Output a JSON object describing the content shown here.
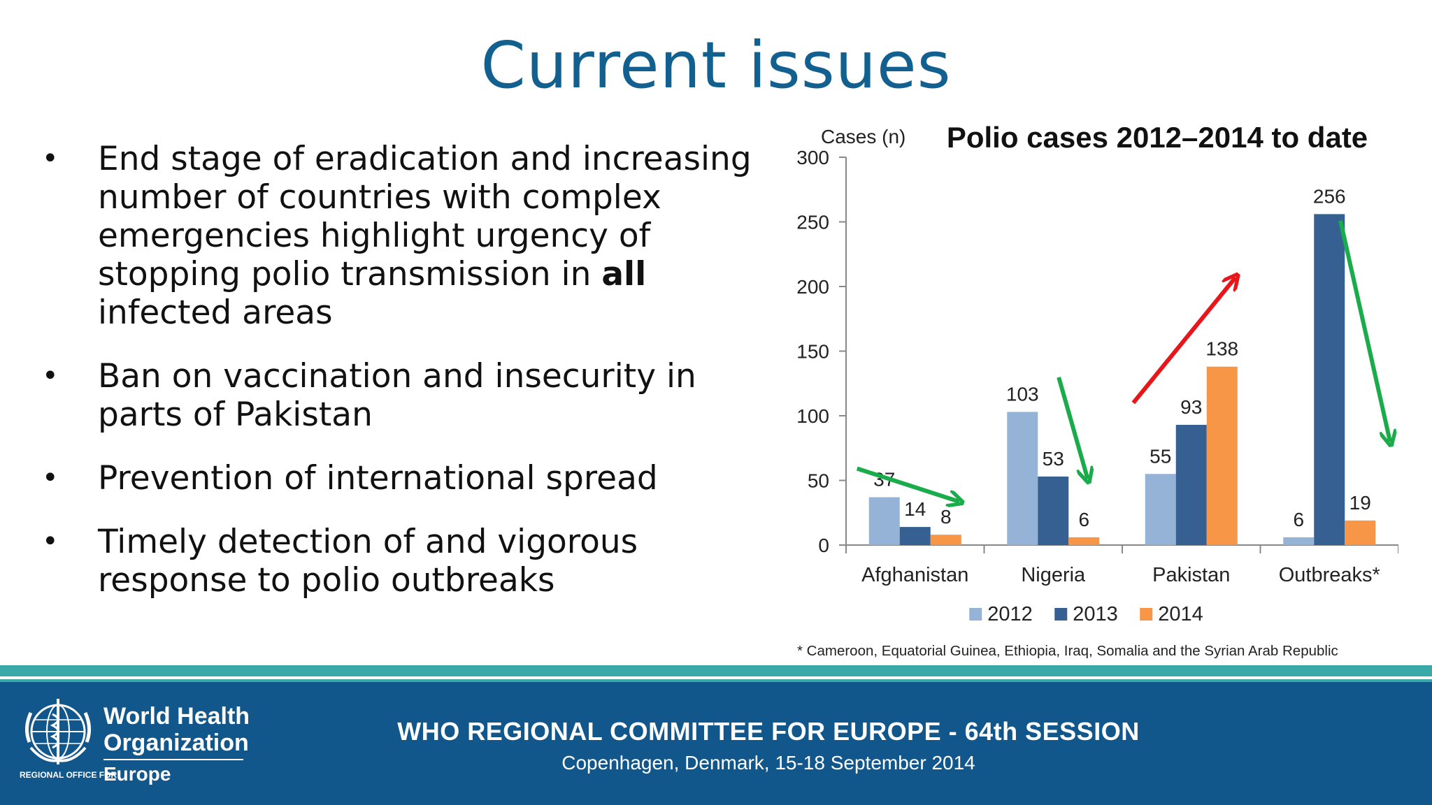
{
  "slide": {
    "title": "Current issues"
  },
  "bullets": [
    "End stage of eradication and increasing number of countries with complex emergencies highlight urgency of stopping polio transmission in all infected areas",
    "Ban on vaccination and insecurity in parts of Pakistan",
    "Prevention of international spread",
    "Timely detection of and vigorous response to polio outbreaks"
  ],
  "bullet_marker": "•",
  "bullet_bold_word": "all",
  "chart_data": {
    "type": "bar",
    "title": "Polio cases 2012–2014 to date",
    "ylabel": "Cases (n)",
    "xlabel": "",
    "ylim": [
      0,
      300
    ],
    "yticks": [
      0,
      50,
      100,
      150,
      200,
      250,
      300
    ],
    "categories": [
      "Afghanistan",
      "Nigeria",
      "Pakistan",
      "Outbreaks*"
    ],
    "series": [
      {
        "name": "2012",
        "color": "#95b3d7",
        "values": [
          37,
          103,
          55,
          6
        ]
      },
      {
        "name": "2013",
        "color": "#376092",
        "values": [
          14,
          53,
          93,
          256
        ]
      },
      {
        "name": "2014",
        "color": "#f79646",
        "values": [
          8,
          6,
          138,
          19
        ]
      }
    ],
    "legend_position": "bottom",
    "grid": false,
    "trend_arrows": [
      {
        "category": "Afghanistan",
        "direction": "down",
        "color": "#1aab4b"
      },
      {
        "category": "Nigeria",
        "direction": "down",
        "color": "#1aab4b"
      },
      {
        "category": "Pakistan",
        "direction": "up",
        "color": "#e8151a"
      },
      {
        "category": "Outbreaks*",
        "direction": "down",
        "color": "#1aab4b"
      }
    ],
    "footnote": "* Cameroon, Equatorial Guinea, Ethiopia, Iraq, Somalia and the Syrian Arab Republic"
  },
  "footer": {
    "org_name_line1": "World Health",
    "org_name_line2": "Organization",
    "regional_office": "REGIONAL OFFICE FOR",
    "region": "Europe",
    "event_title": "WHO REGIONAL COMMITTEE FOR EUROPE - 64th SESSION",
    "event_subtitle": "Copenhagen, Denmark, 15-18 September 2014"
  },
  "colors": {
    "title": "#12608f",
    "footer_bg": "#12578c",
    "accent_teal": "#3aa9a8"
  }
}
